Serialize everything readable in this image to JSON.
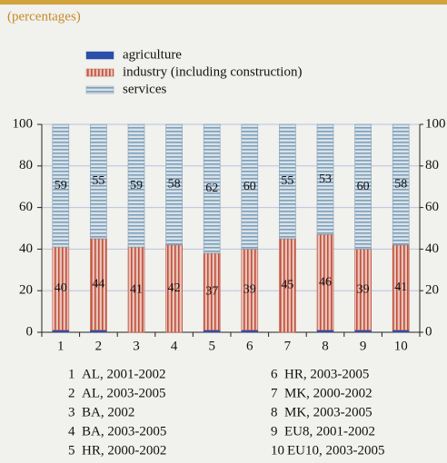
{
  "chart_data": {
    "type": "stacked-bar",
    "subtitle": "(percentages)",
    "categories": [
      "1",
      "2",
      "3",
      "4",
      "5",
      "6",
      "7",
      "8",
      "9",
      "10"
    ],
    "category_notes": [
      "AL, 2001-2002",
      "AL, 2003-2005",
      "BA, 2002",
      "BA, 2003-2005",
      "HR, 2000-2002",
      "HR, 2003-2005",
      "MK, 2000-2002",
      "MK, 2003-2005",
      "EU8, 2001-2002",
      "EU10, 2003-2005"
    ],
    "series": [
      {
        "name": "agriculture",
        "color": "#2a4fa8",
        "values": [
          1,
          1,
          0,
          0,
          1,
          1,
          0,
          1,
          1,
          1
        ]
      },
      {
        "name": "industry (including construction)",
        "color": "#c0503a",
        "values": [
          40,
          44,
          41,
          42,
          37,
          39,
          45,
          46,
          39,
          41
        ]
      },
      {
        "name": "services",
        "color": "#7f9fb8",
        "values": [
          59,
          55,
          59,
          58,
          62,
          60,
          55,
          53,
          60,
          58
        ]
      }
    ],
    "ylim": [
      0,
      100
    ],
    "yticks": [
      0,
      20,
      40,
      60,
      80,
      100
    ],
    "y2lim": [
      0,
      100
    ],
    "y2ticks": [
      0,
      20,
      40,
      60,
      80,
      100
    ],
    "grid": true
  }
}
